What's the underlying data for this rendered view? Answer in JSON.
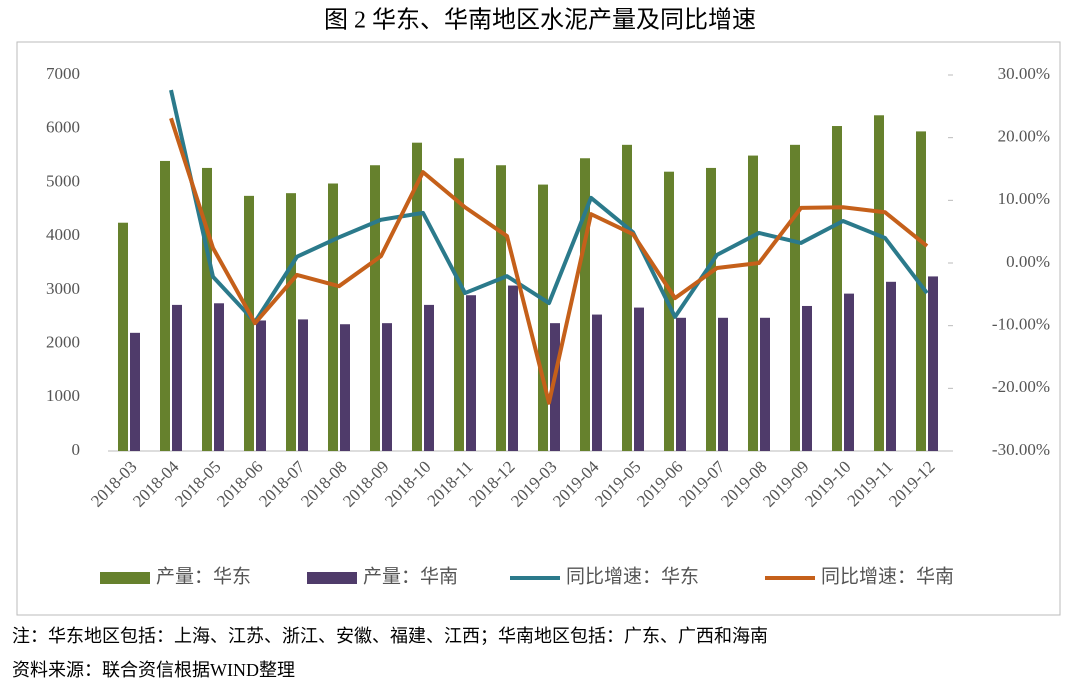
{
  "chart_data": {
    "type": "bar_line",
    "title": "图 2 华东、华南地区水泥产量及同比增速",
    "categories": [
      "2018-03",
      "2018-04",
      "2018-05",
      "2018-06",
      "2018-07",
      "2018-08",
      "2018-09",
      "2018-10",
      "2018-11",
      "2018-12",
      "2019-03",
      "2019-04",
      "2019-05",
      "2019-06",
      "2019-07",
      "2019-08",
      "2019-09",
      "2019-10",
      "2019-11",
      "2019-12"
    ],
    "series": [
      {
        "name": "产量：华东",
        "color": "#66812d",
        "kind": "bar",
        "values": [
          4250,
          5400,
          5270,
          4750,
          4800,
          4980,
          5320,
          5740,
          5450,
          5320,
          4960,
          5450,
          5700,
          5200,
          5270,
          5500,
          5700,
          6050,
          6250,
          5950
        ]
      },
      {
        "name": "产量：华南",
        "color": "#4f3b6a",
        "kind": "bar",
        "values": [
          2200,
          2720,
          2750,
          2430,
          2450,
          2360,
          2380,
          2720,
          2900,
          3080,
          2380,
          2540,
          2670,
          2480,
          2480,
          2480,
          2700,
          2930,
          3150,
          3250
        ]
      },
      {
        "name": "同比增速：华东",
        "color": "#2b7a8b",
        "kind": "line",
        "axis": "y2",
        "values": [
          null,
          27.6,
          -2.2,
          -9.4,
          1.0,
          4.1,
          6.9,
          8.0,
          -4.8,
          -2.1,
          -6.4,
          10.4,
          4.9,
          -8.6,
          1.3,
          4.8,
          3.2,
          6.7,
          4.0,
          -4.8
        ]
      },
      {
        "name": "同比增速：华南",
        "color": "#c5601a",
        "kind": "line",
        "axis": "y2",
        "values": [
          null,
          23.1,
          2.4,
          -9.6,
          -1.9,
          -3.7,
          1.1,
          14.5,
          8.9,
          4.3,
          -22.3,
          7.8,
          4.6,
          -5.6,
          -0.8,
          0.0,
          8.8,
          8.9,
          8.1,
          2.7
        ]
      }
    ],
    "ylim": [
      0,
      7000
    ],
    "yticks": [
      0,
      1000,
      2000,
      3000,
      4000,
      5000,
      6000,
      7000
    ],
    "y2lim": [
      -30,
      30
    ],
    "y2ticks": [
      {
        "value": -30,
        "label": "-30.00%"
      },
      {
        "value": -20,
        "label": "-20.00%"
      },
      {
        "value": -10,
        "label": "-10.00%"
      },
      {
        "value": 0,
        "label": "0.00%"
      },
      {
        "value": 10,
        "label": "10.00%"
      },
      {
        "value": 20,
        "label": "20.00%"
      },
      {
        "value": 30,
        "label": "30.00%"
      }
    ],
    "legend": "bottom",
    "notes": [
      "注：华东地区包括：上海、江苏、浙江、安徽、福建、江西；华南地区包括：广东、广西和海南",
      "资料来源：联合资信根据WIND整理"
    ]
  }
}
